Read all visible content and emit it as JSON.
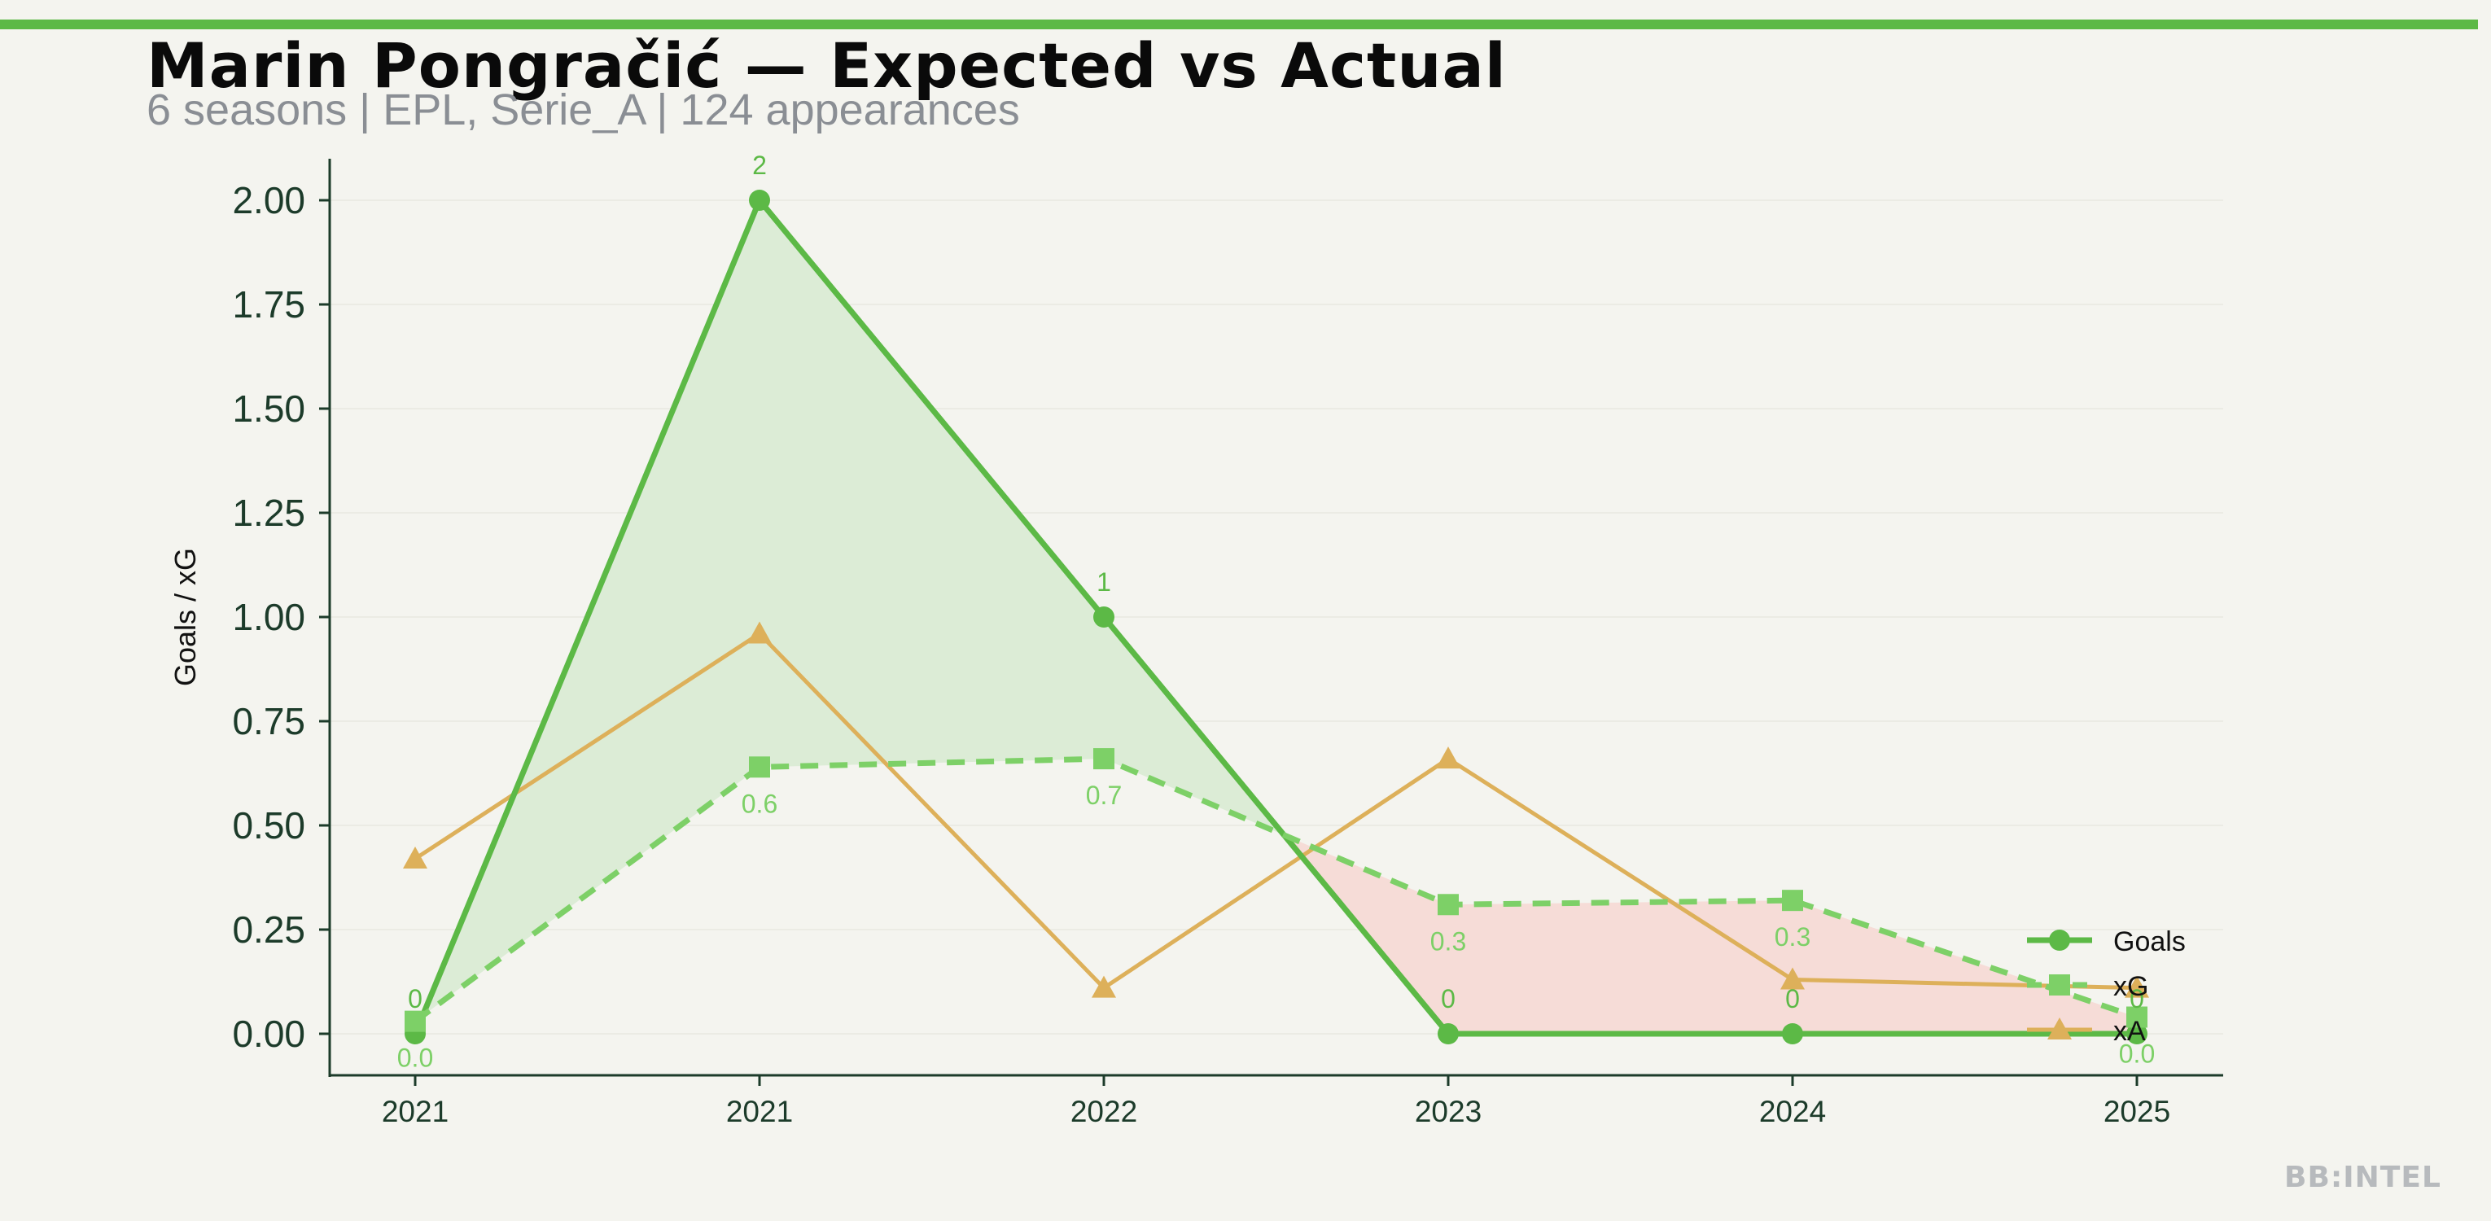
{
  "header": {
    "title": "Marin Pongračić — Expected vs Actual",
    "subtitle": "6 seasons | EPL, Serie_A | 124 appearances"
  },
  "brand": {
    "watermark": "BB:INTEL"
  },
  "colors": {
    "goals": "#5cb946",
    "xg": "#7dd067",
    "xa": "#ddb05a",
    "fill_over": "#dcecd6",
    "fill_under": "#f6dcd7",
    "axis": "#1c3b2a",
    "background": "#f4f4ef"
  },
  "chart_data": {
    "type": "line",
    "title": "Marin Pongračić — Expected vs Actual",
    "ylabel": "Goals / xG",
    "xlabel": "",
    "categories": [
      "2021",
      "2021",
      "2022",
      "2023",
      "2024",
      "2025"
    ],
    "ylim": [
      -0.1,
      2.1
    ],
    "yticks": [
      "0.00",
      "0.25",
      "0.50",
      "0.75",
      "1.00",
      "1.25",
      "1.50",
      "1.75",
      "2.00"
    ],
    "ytick_values": [
      0,
      0.25,
      0.5,
      0.75,
      1.0,
      1.25,
      1.5,
      1.75,
      2.0
    ],
    "grid": "horizontal, faint",
    "legend_position": "bottom-right",
    "series": [
      {
        "name": "Goals",
        "values": [
          0,
          2,
          1,
          0,
          0,
          0
        ],
        "labels": [
          "0",
          "2",
          "1",
          "0",
          "0",
          "0"
        ],
        "marker": "circle",
        "style": "solid"
      },
      {
        "name": "xG",
        "values": [
          0.03,
          0.64,
          0.66,
          0.31,
          0.32,
          0.04
        ],
        "labels": [
          "0.0",
          "0.6",
          "0.7",
          "0.3",
          "0.3",
          "0.0"
        ],
        "marker": "square",
        "style": "dashed"
      },
      {
        "name": "xA",
        "values": [
          0.42,
          0.96,
          0.11,
          0.66,
          0.13,
          0.11
        ],
        "marker": "triangle",
        "style": "solid"
      }
    ]
  }
}
